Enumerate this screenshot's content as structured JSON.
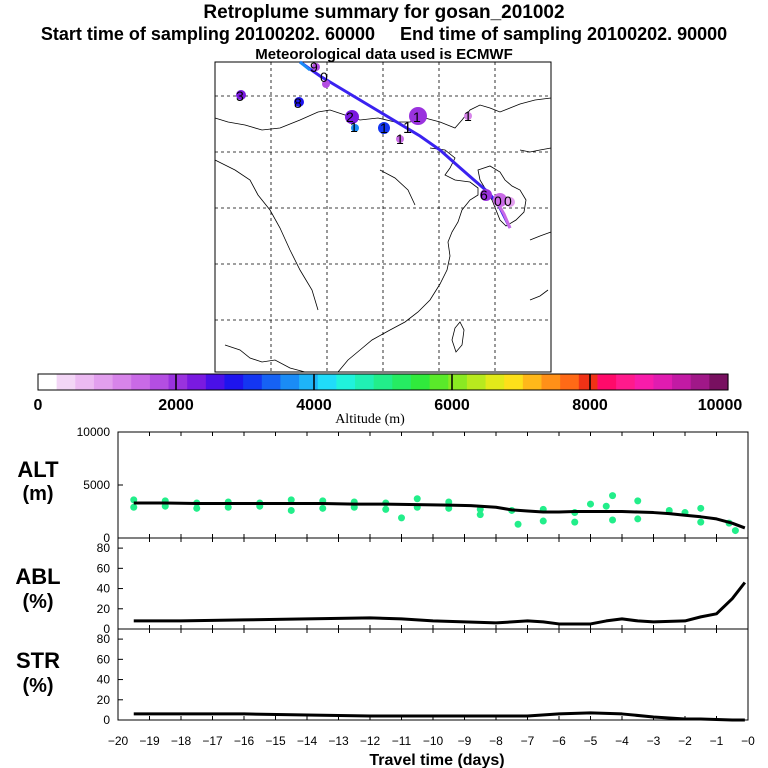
{
  "header": {
    "title": "Retroplume summary for gosan_201002",
    "start_label": "Start time of sampling 20100202. 60000",
    "end_label": "End time of sampling 20100202. 90000",
    "met_label": "Meteorological data used is ECMWF"
  },
  "colorbar": {
    "label": "Altitude (m)",
    "ticks": [
      "0",
      "2000",
      "4000",
      "6000",
      "8000",
      "10000"
    ],
    "colors": [
      "#ffffff",
      "#f3d6f6",
      "#ecbaf2",
      "#e29fee",
      "#d784ea",
      "#c96ae6",
      "#b44ee2",
      "#9a32de",
      "#7a1ae0",
      "#4a10e8",
      "#1e14ee",
      "#1436f2",
      "#1662f4",
      "#1a8cf6",
      "#1eb4f8",
      "#20dcfa",
      "#20f2dc",
      "#20f0b4",
      "#22ee8a",
      "#26ec62",
      "#30ea3c",
      "#5aea2a",
      "#8aea22",
      "#b8ea1e",
      "#e2ea1a",
      "#fde01a",
      "#ffb81a",
      "#ff9018",
      "#ff6a16",
      "#f03216",
      "#ff0a6a",
      "#ff1a8c",
      "#f81caa",
      "#e01cb0",
      "#c21aa4",
      "#a01888",
      "#781060"
    ]
  },
  "map": {
    "plume_labels": [
      {
        "text": "3"
      },
      {
        "text": "8"
      },
      {
        "text": "0"
      },
      {
        "text": "2"
      },
      {
        "text": "1"
      },
      {
        "text": "1"
      },
      {
        "text": "1"
      },
      {
        "text": "1"
      },
      {
        "text": "1"
      },
      {
        "text": "1"
      },
      {
        "text": "9"
      },
      {
        "text": "6"
      },
      {
        "text": "0"
      },
      {
        "text": "0"
      }
    ]
  },
  "chart_data": [
    {
      "type": "line",
      "name": "ALT",
      "ylabel": "ALT",
      "yunit": "(m)",
      "ylim": [
        0,
        10000
      ],
      "yticks": [
        "10000",
        "5000",
        "0"
      ],
      "x": [
        -19.5,
        -18.5,
        -17.5,
        -16.5,
        -15.5,
        -14.5,
        -13.5,
        -12.5,
        -11.5,
        -10.5,
        -9.5,
        -8.8,
        -8.0,
        -7.5,
        -7.0,
        -6.5,
        -6.0,
        -5.5,
        -5.0,
        -4.5,
        -4.0,
        -3.5,
        -3.0,
        -2.5,
        -2.0,
        -1.5,
        -1.0,
        -0.5,
        -0.1
      ],
      "y": [
        3300,
        3300,
        3250,
        3250,
        3250,
        3250,
        3250,
        3200,
        3200,
        3150,
        3100,
        3050,
        2900,
        2650,
        2550,
        2450,
        2450,
        2500,
        2500,
        2500,
        2500,
        2450,
        2400,
        2300,
        2150,
        2000,
        1800,
        1400,
        950
      ],
      "scatter_x": [
        -19.5,
        -19.5,
        -18.5,
        -18.5,
        -17.5,
        -17.5,
        -16.5,
        -16.5,
        -15.5,
        -15.5,
        -14.5,
        -14.5,
        -13.5,
        -13.5,
        -12.5,
        -12.5,
        -11.5,
        -11.5,
        -11.0,
        -10.5,
        -10.5,
        -9.5,
        -9.5,
        -8.5,
        -8.5,
        -7.5,
        -7.3,
        -6.5,
        -6.5,
        -5.5,
        -5.5,
        -5.0,
        -4.5,
        -4.3,
        -4.3,
        -3.5,
        -3.5,
        -2.5,
        -2.0,
        -1.5,
        -1.5,
        -0.6,
        -0.4
      ],
      "scatter_y": [
        3600,
        2900,
        3500,
        3000,
        3300,
        2800,
        3400,
        2900,
        3300,
        3000,
        3600,
        2600,
        3500,
        2800,
        3400,
        2900,
        3300,
        2700,
        1900,
        3700,
        2900,
        3400,
        2800,
        2700,
        2200,
        2600,
        1300,
        2700,
        1600,
        2400,
        1500,
        3200,
        3000,
        4000,
        1700,
        3500,
        1800,
        2600,
        2400,
        2800,
        1500,
        1400,
        700
      ],
      "xlim": [
        -20,
        0
      ]
    },
    {
      "type": "line",
      "name": "ABL",
      "ylabel": "ABL",
      "yunit": "(%)",
      "ylim": [
        0,
        90
      ],
      "yticks": [
        "80",
        "60",
        "40",
        "20",
        "0"
      ],
      "x": [
        -19.5,
        -18.0,
        -16.0,
        -14.0,
        -12.0,
        -11.0,
        -10.0,
        -9.0,
        -8.0,
        -7.0,
        -6.5,
        -6.0,
        -5.0,
        -4.5,
        -4.0,
        -3.5,
        -3.0,
        -2.0,
        -1.5,
        -1.0,
        -0.5,
        -0.1
      ],
      "y": [
        8,
        8,
        9,
        10,
        11,
        10,
        8,
        7,
        6,
        8,
        7,
        5,
        5,
        8,
        10,
        8,
        7,
        8,
        12,
        15,
        30,
        46
      ],
      "xlim": [
        -20,
        0
      ]
    },
    {
      "type": "line",
      "name": "STR",
      "ylabel": "STR",
      "yunit": "(%)",
      "ylim": [
        0,
        90
      ],
      "yticks": [
        "80",
        "60",
        "40",
        "20",
        "0"
      ],
      "x": [
        -19.5,
        -18.0,
        -16.0,
        -14.0,
        -12.0,
        -10.0,
        -8.0,
        -7.0,
        -6.0,
        -5.0,
        -4.0,
        -3.0,
        -2.5,
        -2.0,
        -1.5,
        -0.5,
        -0.1
      ],
      "y": [
        6,
        6,
        6,
        5,
        4,
        4,
        4,
        4,
        6,
        7,
        6,
        3,
        2,
        1,
        1,
        0,
        0
      ],
      "xlim": [
        -20,
        0
      ]
    }
  ],
  "xaxis": {
    "label": "Travel time (days)",
    "ticks": [
      "−20",
      "−19",
      "−18",
      "−17",
      "−16",
      "−15",
      "−14",
      "−13",
      "−12",
      "−11",
      "−10",
      "−9",
      "−8",
      "−7",
      "−6",
      "−5",
      "−4",
      "−3",
      "−2",
      "−1",
      "−0"
    ]
  }
}
